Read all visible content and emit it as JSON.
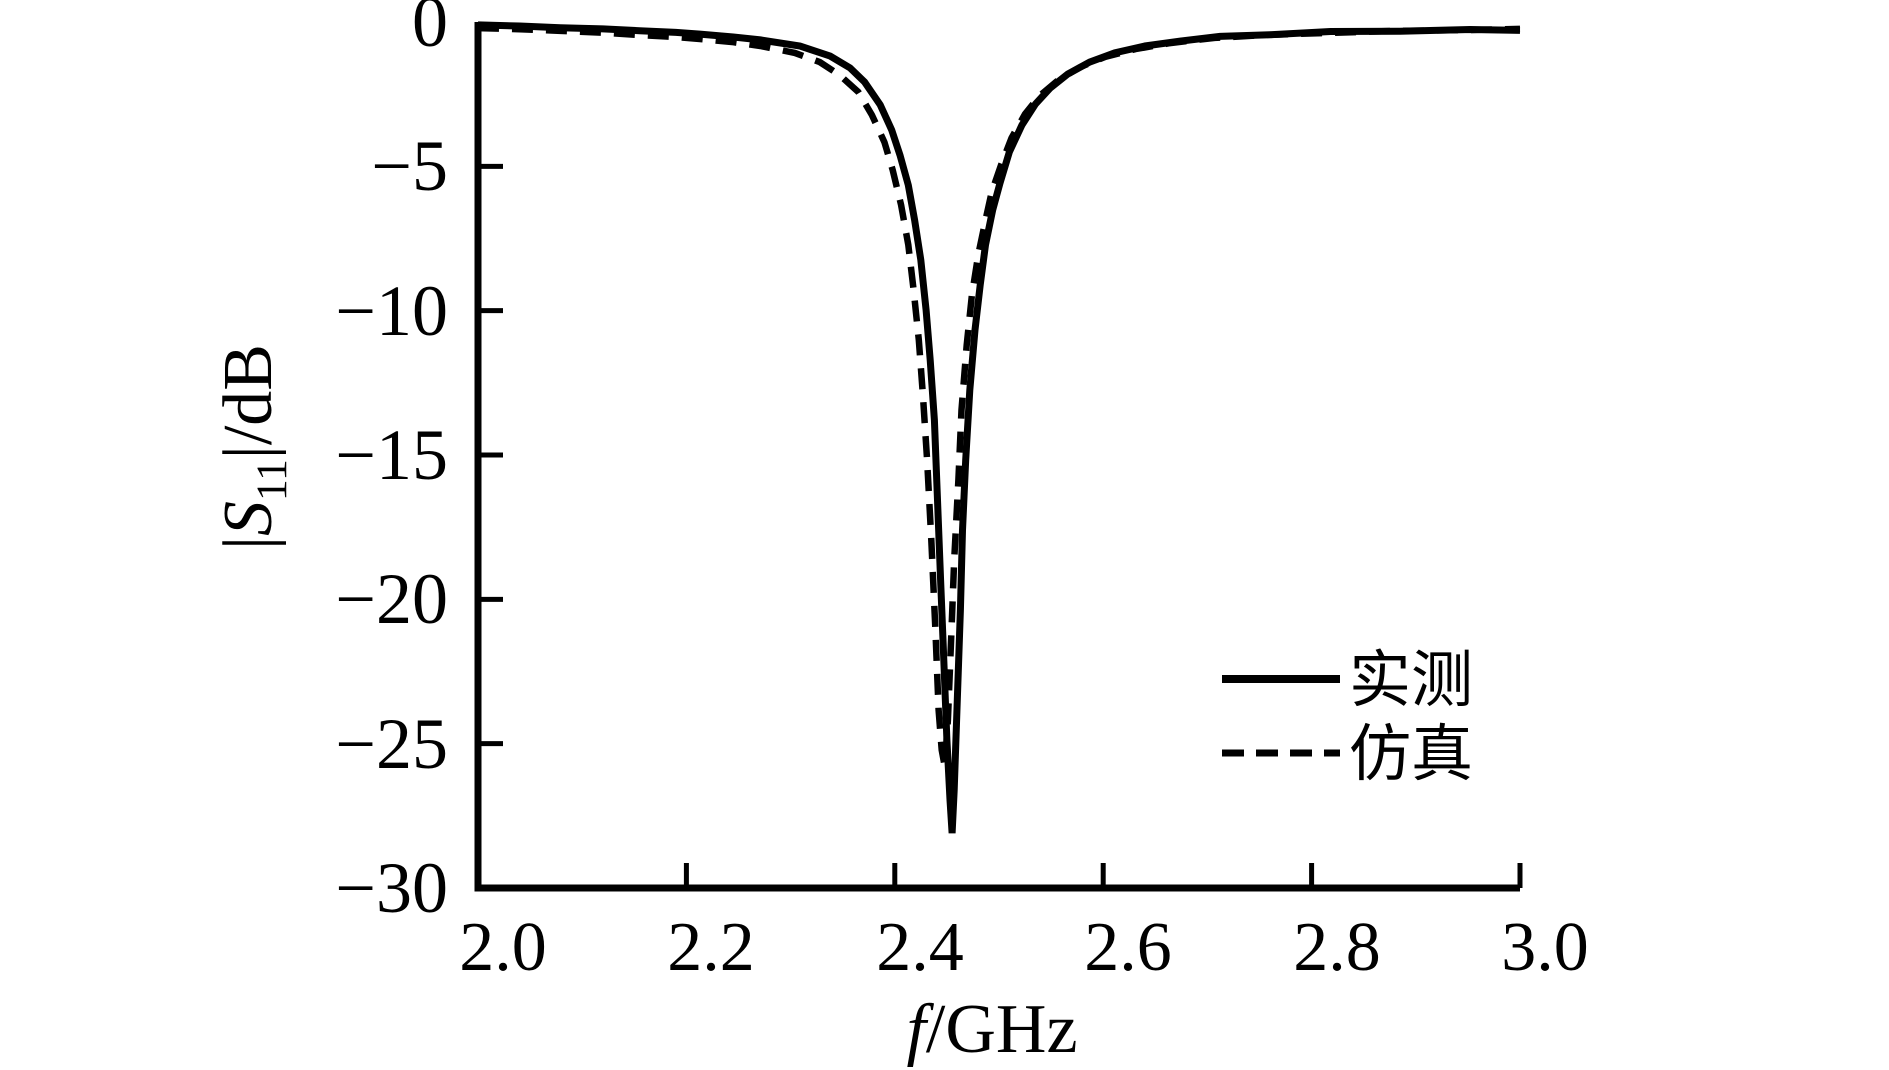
{
  "figure": {
    "background_color": "#ffffff",
    "ink_color": "#000000"
  },
  "labels": {
    "y_axis": {
      "prefix": "|",
      "symbol": "S",
      "subscript": "11",
      "suffix": "|/dB"
    },
    "x_axis": {
      "symbol": "f",
      "suffix": "/GHz"
    }
  },
  "legend": {
    "position": "lower right",
    "items": [
      {
        "label": "实测",
        "line_style": "solid"
      },
      {
        "label": "仿真",
        "line_style": "dashed"
      }
    ]
  },
  "chart_data": {
    "type": "line",
    "title": "",
    "xlabel": "f/GHz",
    "ylabel": "|S11|/dB",
    "xlim": [
      2.0,
      3.0
    ],
    "ylim": [
      -30,
      0
    ],
    "x_ticks": [
      2.0,
      2.2,
      2.4,
      2.6,
      2.8,
      3.0
    ],
    "y_ticks": [
      0,
      -5,
      -10,
      -15,
      -20,
      -25,
      -30
    ],
    "x_tick_labels": [
      "2.0",
      "2.2",
      "2.4",
      "2.6",
      "2.8",
      "3.0"
    ],
    "y_tick_labels": [
      "0",
      "−5",
      "−10",
      "−15",
      "−20",
      "−25",
      "−30"
    ],
    "grid": false,
    "legend_position": "lower right",
    "resonance_note": "measured minimum ≈ −28 dB near 2.45 GHz; simulated minimum ≈ −26 dB near 2.45 GHz",
    "series": [
      {
        "name": "实测",
        "style": "solid",
        "points": [
          [
            2.0,
            -0.1
          ],
          [
            2.04,
            -0.14
          ],
          [
            2.079,
            -0.2
          ],
          [
            2.12,
            -0.24
          ],
          [
            2.155,
            -0.3
          ],
          [
            2.19,
            -0.36
          ],
          [
            2.213,
            -0.42
          ],
          [
            2.245,
            -0.52
          ],
          [
            2.271,
            -0.62
          ],
          [
            2.309,
            -0.83
          ],
          [
            2.338,
            -1.18
          ],
          [
            2.357,
            -1.59
          ],
          [
            2.371,
            -2.08
          ],
          [
            2.386,
            -2.87
          ],
          [
            2.397,
            -3.74
          ],
          [
            2.405,
            -4.61
          ],
          [
            2.413,
            -5.65
          ],
          [
            2.419,
            -6.86
          ],
          [
            2.425,
            -8.24
          ],
          [
            2.43,
            -9.98
          ],
          [
            2.434,
            -11.71
          ],
          [
            2.438,
            -13.79
          ],
          [
            2.441,
            -16.56
          ],
          [
            2.444,
            -19.33
          ],
          [
            2.447,
            -22.1
          ],
          [
            2.45,
            -24.87
          ],
          [
            2.453,
            -26.95
          ],
          [
            2.455,
            -28.1
          ],
          [
            2.457,
            -26.6
          ],
          [
            2.46,
            -23.48
          ],
          [
            2.463,
            -20.37
          ],
          [
            2.465,
            -17.6
          ],
          [
            2.468,
            -15.17
          ],
          [
            2.472,
            -12.75
          ],
          [
            2.477,
            -10.67
          ],
          [
            2.482,
            -9.11
          ],
          [
            2.487,
            -7.72
          ],
          [
            2.494,
            -6.51
          ],
          [
            2.501,
            -5.58
          ],
          [
            2.51,
            -4.5
          ],
          [
            2.522,
            -3.57
          ],
          [
            2.535,
            -2.84
          ],
          [
            2.549,
            -2.29
          ],
          [
            2.566,
            -1.8
          ],
          [
            2.587,
            -1.39
          ],
          [
            2.611,
            -1.07
          ],
          [
            2.64,
            -0.83
          ],
          [
            2.674,
            -0.66
          ],
          [
            2.712,
            -0.5
          ],
          [
            2.76,
            -0.44
          ],
          [
            2.818,
            -0.33
          ],
          [
            2.885,
            -0.32
          ],
          [
            2.952,
            -0.26
          ],
          [
            3.0,
            -0.29
          ]
        ]
      },
      {
        "name": "仿真",
        "style": "dashed",
        "points": [
          [
            2.0,
            -0.21
          ],
          [
            2.04,
            -0.25
          ],
          [
            2.079,
            -0.31
          ],
          [
            2.12,
            -0.37
          ],
          [
            2.155,
            -0.45
          ],
          [
            2.19,
            -0.52
          ],
          [
            2.213,
            -0.59
          ],
          [
            2.245,
            -0.7
          ],
          [
            2.271,
            -0.83
          ],
          [
            2.304,
            -1.07
          ],
          [
            2.328,
            -1.39
          ],
          [
            2.347,
            -1.84
          ],
          [
            2.365,
            -2.42
          ],
          [
            2.378,
            -3.22
          ],
          [
            2.39,
            -4.16
          ],
          [
            2.398,
            -5.13
          ],
          [
            2.406,
            -6.34
          ],
          [
            2.413,
            -7.72
          ],
          [
            2.418,
            -9.28
          ],
          [
            2.423,
            -11.01
          ],
          [
            2.427,
            -12.92
          ],
          [
            2.431,
            -15.17
          ],
          [
            2.435,
            -17.94
          ],
          [
            2.439,
            -21.06
          ],
          [
            2.442,
            -23.83
          ],
          [
            2.445,
            -25.22
          ],
          [
            2.448,
            -25.8
          ],
          [
            2.451,
            -24.18
          ],
          [
            2.454,
            -21.41
          ],
          [
            2.457,
            -18.63
          ],
          [
            2.461,
            -15.86
          ],
          [
            2.464,
            -13.44
          ],
          [
            2.469,
            -11.19
          ],
          [
            2.474,
            -9.46
          ],
          [
            2.48,
            -8.07
          ],
          [
            2.487,
            -6.86
          ],
          [
            2.493,
            -5.89
          ],
          [
            2.502,
            -4.95
          ],
          [
            2.512,
            -4.02
          ],
          [
            2.525,
            -3.19
          ],
          [
            2.539,
            -2.56
          ],
          [
            2.557,
            -2.01
          ],
          [
            2.578,
            -1.56
          ],
          [
            2.602,
            -1.21
          ],
          [
            2.631,
            -0.94
          ],
          [
            2.664,
            -0.73
          ],
          [
            2.707,
            -0.55
          ],
          [
            2.755,
            -0.45
          ],
          [
            2.813,
            -0.38
          ],
          [
            2.88,
            -0.31
          ],
          [
            2.947,
            -0.28
          ],
          [
            3.0,
            -0.24
          ]
        ]
      }
    ]
  }
}
